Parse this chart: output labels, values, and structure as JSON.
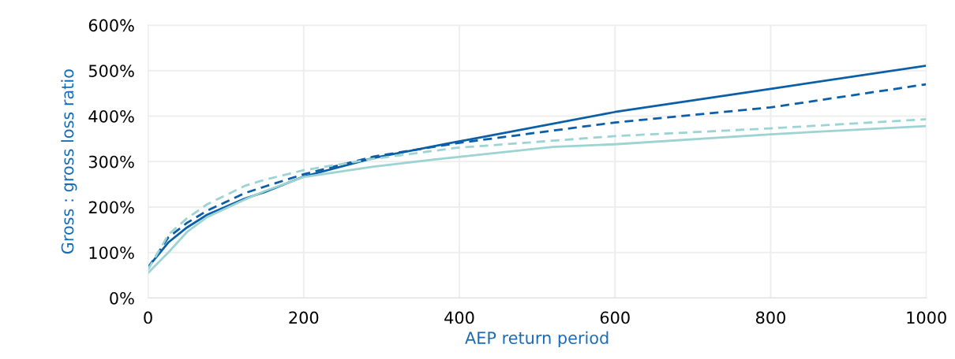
{
  "chart_data": {
    "type": "line",
    "xlabel": "AEP return period",
    "ylabel": "Gross : gross loss ratio",
    "xlim": [
      0,
      1000
    ],
    "xticks": [
      0,
      200,
      400,
      600,
      800,
      1000
    ],
    "ylim": [
      0,
      600
    ],
    "yticks": [
      {
        "value": 0,
        "label": "0%"
      },
      {
        "value": 100,
        "label": "100%"
      },
      {
        "value": 200,
        "label": "200%"
      },
      {
        "value": 300,
        "label": "300%"
      },
      {
        "value": 400,
        "label": "400%"
      },
      {
        "value": 500,
        "label": "500%"
      },
      {
        "value": 600,
        "label": "600%"
      }
    ],
    "grid": true,
    "marker": "none",
    "series": [
      {
        "color": "#0a5fa8",
        "line_style": "solid",
        "x": [
          0,
          26,
          50,
          76,
          125,
          150,
          200,
          290,
          395,
          408,
          600,
          800,
          1000
        ],
        "values": [
          68,
          122,
          155,
          183,
          219,
          233,
          267,
          308,
          343,
          347,
          409,
          460,
          511
        ]
      },
      {
        "color": "#0a5fa8",
        "line_style": "dashed",
        "x": [
          0,
          26,
          50,
          76,
          125,
          150,
          200,
          290,
          395,
          600,
          800,
          1000
        ],
        "values": [
          66,
          133,
          165,
          192,
          231,
          245,
          272,
          311,
          340,
          386,
          419,
          470
        ]
      },
      {
        "color": "#9dd3d2",
        "line_style": "solid",
        "x": [
          0,
          26,
          50,
          76,
          125,
          150,
          200,
          290,
          370,
          520,
          600,
          800,
          1000
        ],
        "values": [
          55,
          100,
          145,
          178,
          217,
          235,
          266,
          289,
          305,
          332,
          338,
          360,
          378
        ]
      },
      {
        "color": "#9dd3d2",
        "line_style": "dashed",
        "x": [
          0,
          26,
          50,
          76,
          125,
          150,
          200,
          290,
          395,
          600,
          800,
          1000
        ],
        "values": [
          62,
          139,
          175,
          206,
          247,
          260,
          281,
          306,
          330,
          356,
          373,
          393
        ]
      }
    ]
  }
}
